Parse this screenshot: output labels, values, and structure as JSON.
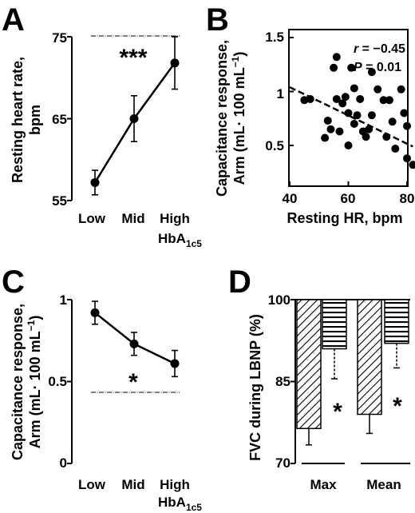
{
  "panels": {
    "A": "A",
    "B": "B",
    "C": "C",
    "D": "D"
  },
  "chart_data": [
    {
      "panel": "A",
      "type": "line",
      "categories": [
        "Low",
        "Mid",
        "High"
      ],
      "xlabel_extra": "HbA",
      "xlabel_extra_sub": "1c5",
      "values": [
        57.2,
        65.0,
        71.8
      ],
      "errors": [
        1.5,
        2.8,
        3.2
      ],
      "ylabel_line1": "Resting heart rate,",
      "ylabel_line2": "bpm",
      "ylim": [
        55,
        75
      ],
      "yticks": [
        "55",
        "65",
        "75"
      ],
      "significance": "***"
    },
    {
      "panel": "B",
      "type": "scatter",
      "xlabel": "Resting HR, bpm",
      "ylabel_line1": "Capacitance response,",
      "ylabel_line2": "Arm (mL· 100 mL",
      "ylabel_sup": "−1",
      "ylabel_close": ")",
      "xlim": [
        40,
        82
      ],
      "ylim": [
        0.25,
        1.35
      ],
      "xticks": [
        "40",
        "60",
        "80"
      ],
      "yticks": [
        "0.5",
        "1",
        "1.5"
      ],
      "r_label": "r",
      "r_value": " = −0.45",
      "p_label": "P",
      "p_value": " = 0.01",
      "points": [
        {
          "x": 45,
          "y": 0.92
        },
        {
          "x": 47,
          "y": 0.93
        },
        {
          "x": 52,
          "y": 0.57
        },
        {
          "x": 53,
          "y": 0.73
        },
        {
          "x": 54,
          "y": 0.65
        },
        {
          "x": 55,
          "y": 1.22
        },
        {
          "x": 56,
          "y": 1.32
        },
        {
          "x": 56,
          "y": 0.93
        },
        {
          "x": 57,
          "y": 0.63
        },
        {
          "x": 58,
          "y": 0.89
        },
        {
          "x": 59,
          "y": 0.95
        },
        {
          "x": 60,
          "y": 0.5
        },
        {
          "x": 60,
          "y": 0.8
        },
        {
          "x": 61,
          "y": 1.22
        },
        {
          "x": 62,
          "y": 1.03
        },
        {
          "x": 62,
          "y": 0.7
        },
        {
          "x": 63,
          "y": 0.78
        },
        {
          "x": 64,
          "y": 0.93
        },
        {
          "x": 65,
          "y": 0.63
        },
        {
          "x": 66,
          "y": 0.58
        },
        {
          "x": 67,
          "y": 0.65
        },
        {
          "x": 68,
          "y": 1.18
        },
        {
          "x": 68,
          "y": 0.78
        },
        {
          "x": 70,
          "y": 1.02
        },
        {
          "x": 72,
          "y": 0.92
        },
        {
          "x": 73,
          "y": 0.58
        },
        {
          "x": 74,
          "y": 0.92
        },
        {
          "x": 75,
          "y": 0.72
        },
        {
          "x": 76,
          "y": 0.47
        },
        {
          "x": 78,
          "y": 1.02
        },
        {
          "x": 79,
          "y": 0.8
        },
        {
          "x": 80,
          "y": 0.68
        },
        {
          "x": 80,
          "y": 0.38
        },
        {
          "x": 82,
          "y": 0.32
        }
      ],
      "trend": {
        "x": [
          40,
          82
        ],
        "y": [
          1.04,
          0.49
        ]
      }
    },
    {
      "panel": "C",
      "type": "line",
      "categories": [
        "Low",
        "Mid",
        "High"
      ],
      "xlabel_extra": "HbA",
      "xlabel_extra_sub": "1c5",
      "values": [
        0.92,
        0.73,
        0.61
      ],
      "errors": [
        0.07,
        0.07,
        0.08
      ],
      "ylabel_line1": "Capacitance response,",
      "ylabel_line2": "Arm (mL· 100 mL",
      "ylabel_sup": "−1",
      "ylabel_close": ")",
      "ylim": [
        0,
        1
      ],
      "yticks": [
        "0",
        "0.5",
        "1"
      ],
      "significance": "*"
    },
    {
      "panel": "D",
      "type": "bar",
      "categories": [
        "Max",
        "Mean"
      ],
      "series": [
        {
          "values": [
            76.4,
            79.0
          ],
          "errors": [
            3.0,
            3.5
          ],
          "pattern": "diagonal"
        },
        {
          "values": [
            91.0,
            92.0
          ],
          "errors": [
            5.5,
            4.5
          ],
          "pattern": "horizontal"
        }
      ],
      "ylabel": "FVC during LBNP (%)",
      "ylim": [
        70,
        100
      ],
      "yticks": [
        "70",
        "85",
        "100"
      ],
      "significance": [
        "*",
        "*"
      ]
    }
  ]
}
